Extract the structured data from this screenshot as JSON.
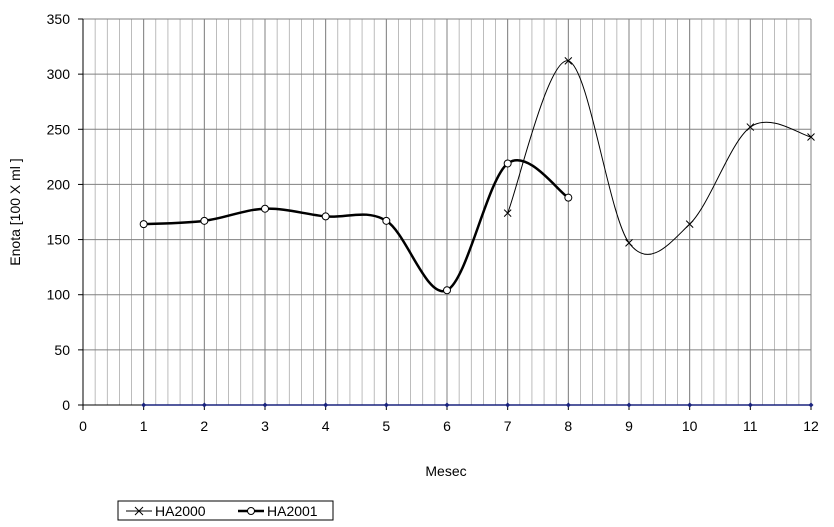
{
  "chart_data": {
    "type": "line",
    "title": "",
    "xlabel": "Mesec",
    "ylabel": "Enota [100 X ml ]",
    "xlim": [
      0,
      12
    ],
    "ylim": [
      0,
      350
    ],
    "x_ticks": [
      "0",
      "1",
      "2",
      "3",
      "4",
      "5",
      "6",
      "7",
      "8",
      "9",
      "10",
      "11",
      "12"
    ],
    "y_ticks": [
      "0",
      "50",
      "100",
      "150",
      "200",
      "250",
      "300",
      "350"
    ],
    "grid": true,
    "legend_position": "bottom-left",
    "series": [
      {
        "name": "HA2000",
        "marker": "x",
        "color": "#000000",
        "points": [
          [
            7,
            174
          ],
          [
            8,
            312
          ],
          [
            9,
            147
          ],
          [
            10,
            164
          ],
          [
            11,
            252
          ],
          [
            12,
            243
          ]
        ]
      },
      {
        "name": "HA2001",
        "marker": "o",
        "color": "#000000",
        "points": [
          [
            1,
            164
          ],
          [
            2,
            167
          ],
          [
            3,
            178
          ],
          [
            4,
            171
          ],
          [
            5,
            167
          ],
          [
            6,
            104
          ],
          [
            7,
            219
          ],
          [
            8,
            188
          ]
        ]
      },
      {
        "name": "",
        "marker": "diamond",
        "color": "#1a237e",
        "points": [
          [
            1,
            0
          ],
          [
            2,
            0
          ],
          [
            3,
            0
          ],
          [
            4,
            0
          ],
          [
            5,
            0
          ],
          [
            6,
            0
          ],
          [
            7,
            0
          ],
          [
            8,
            0
          ],
          [
            9,
            0
          ],
          [
            10,
            0
          ],
          [
            11,
            0
          ],
          [
            12,
            0
          ]
        ]
      }
    ]
  }
}
